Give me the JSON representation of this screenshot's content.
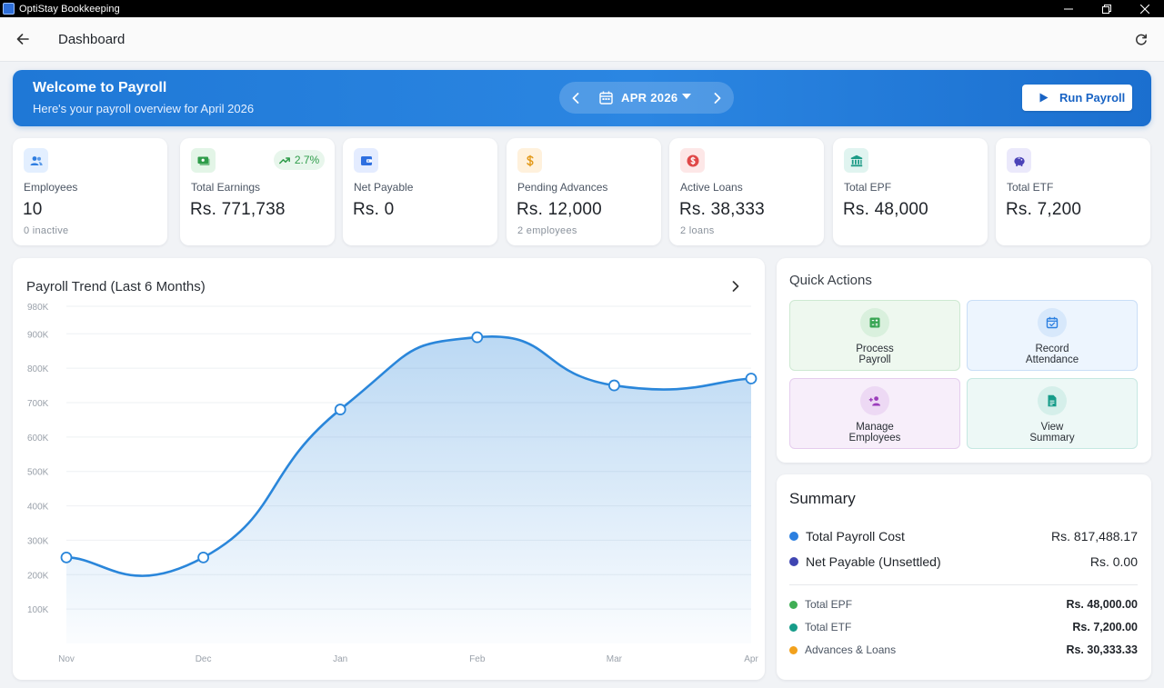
{
  "window": {
    "title": "OptiStay Bookkeeping"
  },
  "header": {
    "title": "Dashboard"
  },
  "banner": {
    "title": "Welcome to Payroll",
    "subtitle": "Here's your payroll overview for April 2026",
    "month": "APR 2026",
    "run_label": "Run Payroll"
  },
  "stats": [
    {
      "label": "Employees",
      "value": "10",
      "sub": "0 inactive",
      "icon": "people-icon",
      "color": "#2e7de0",
      "bg": "#e3efff"
    },
    {
      "label": "Total Earnings",
      "value": "Rs. 771,738",
      "sub": "",
      "trend": "2.7%",
      "icon": "cash-icon",
      "color": "#2f9c4a",
      "bg": "#e3f5e7"
    },
    {
      "label": "Net Payable",
      "value": "Rs. 0",
      "sub": "",
      "icon": "wallet-icon",
      "color": "#2e6fe0",
      "bg": "#e4ecff"
    },
    {
      "label": "Pending Advances",
      "value": "Rs. 12,000",
      "sub": "2 employees",
      "icon": "dollar-icon",
      "color": "#e39a1b",
      "bg": "#fff1dc"
    },
    {
      "label": "Active Loans",
      "value": "Rs. 38,333",
      "sub": "2 loans",
      "icon": "loan-icon",
      "color": "#e04848",
      "bg": "#fde7e7"
    },
    {
      "label": "Total EPF",
      "value": "Rs. 48,000",
      "sub": "",
      "icon": "bank-icon",
      "color": "#1c9b86",
      "bg": "#e0f4f0"
    },
    {
      "label": "Total ETF",
      "value": "Rs. 7,200",
      "sub": "",
      "icon": "piggy-bank-icon",
      "color": "#4b43b8",
      "bg": "#ebe9fb"
    }
  ],
  "chart": {
    "title": "Payroll Trend (Last 6 Months)"
  },
  "chart_data": {
    "type": "area",
    "title": "Payroll Trend (Last 6 Months)",
    "categories": [
      "Nov",
      "Dec",
      "Jan",
      "Feb",
      "Mar",
      "Apr"
    ],
    "values": [
      250000,
      250000,
      680000,
      890000,
      750000,
      770000
    ],
    "ylim": [
      0,
      980000
    ],
    "yticks": [
      100000,
      200000,
      300000,
      400000,
      500000,
      600000,
      700000,
      800000,
      900000,
      980000
    ],
    "ytick_labels": [
      "100K",
      "200K",
      "300K",
      "400K",
      "500K",
      "600K",
      "700K",
      "800K",
      "900K",
      "980K"
    ],
    "grid": true,
    "color": "#2a86da"
  },
  "quick_actions": {
    "title": "Quick Actions",
    "items": [
      {
        "lines": [
          "Process",
          "Payroll"
        ],
        "icon": "calculator-icon",
        "color": "#3aa655",
        "bg": "#eef8ef",
        "border": "#cde9d2",
        "circle": "#d9f0dd"
      },
      {
        "lines": [
          "Record",
          "Attendance"
        ],
        "icon": "calendar-check-icon",
        "color": "#2b7fe0",
        "bg": "#edf5fe",
        "border": "#c9def7",
        "circle": "#d7e8fb"
      },
      {
        "lines": [
          "Manage",
          "Employees"
        ],
        "icon": "person-add-icon",
        "color": "#9b3dbb",
        "bg": "#f7eefa",
        "border": "#e5cdee",
        "circle": "#edd9f4"
      },
      {
        "lines": [
          "View",
          "Summary"
        ],
        "icon": "document-icon",
        "color": "#169c89",
        "bg": "#edf8f6",
        "border": "#c6e8e2",
        "circle": "#d5efea"
      }
    ]
  },
  "summary": {
    "title": "Summary",
    "rows": [
      {
        "label": "Total Payroll Cost",
        "value": "Rs. 817,488.17",
        "color": "#2b7fe0",
        "size": "big"
      },
      {
        "label": "Net Payable (Unsettled)",
        "value": "Rs. 0.00",
        "color": "#3f45b2",
        "size": "big"
      },
      {
        "label": "Total EPF",
        "value": "Rs. 48,000.00",
        "color": "#3fae55",
        "size": "small"
      },
      {
        "label": "Total ETF",
        "value": "Rs. 7,200.00",
        "color": "#169c89",
        "size": "small"
      },
      {
        "label": "Advances & Loans",
        "value": "Rs. 30,333.33",
        "color": "#f2a11c",
        "size": "small"
      }
    ]
  }
}
